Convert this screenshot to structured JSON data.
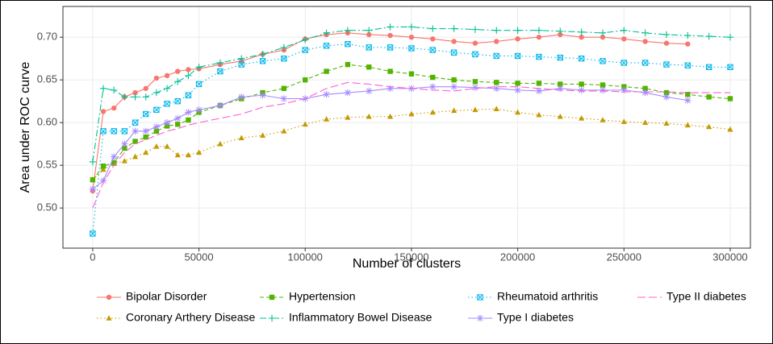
{
  "chart_data": {
    "type": "line",
    "x_label": "Number of clusters",
    "y_label": "Area under ROC curve",
    "x": [
      0,
      5000,
      10000,
      15000,
      20000,
      25000,
      30000,
      35000,
      40000,
      45000,
      50000,
      60000,
      70000,
      80000,
      90000,
      100000,
      110000,
      120000,
      130000,
      140000,
      150000,
      160000,
      170000,
      180000,
      190000,
      200000,
      210000,
      220000,
      230000,
      240000,
      250000,
      260000,
      270000,
      280000,
      290000,
      300000
    ],
    "xlim": [
      -14000,
      309500
    ],
    "ylim": [
      0.453,
      0.736
    ],
    "xticks": [
      0,
      50000,
      100000,
      150000,
      200000,
      250000,
      300000
    ],
    "yticks": [
      {
        "value": 0.5,
        "label": "0.50"
      },
      0.55,
      {
        "value": 0.6,
        "label": "0.60"
      },
      0.65,
      {
        "value": 0.7,
        "label": "0.70"
      }
    ],
    "grid": true,
    "legend_position": "bottom",
    "series": [
      {
        "name": "Bipolar Disorder",
        "color": "#F8766D",
        "marker": "circle",
        "linestyle": "solid",
        "values": [
          0.52,
          0.613,
          0.617,
          0.63,
          0.635,
          0.64,
          0.652,
          0.655,
          0.66,
          0.662,
          0.663,
          0.668,
          0.672,
          0.68,
          0.685,
          0.698,
          0.703,
          0.705,
          0.703,
          0.702,
          0.7,
          0.698,
          0.695,
          0.693,
          0.695,
          0.698,
          0.7,
          0.703,
          0.7,
          0.7,
          0.698,
          0.695,
          0.693,
          0.692,
          null,
          null
        ]
      },
      {
        "name": "Coronary Arthery Disease",
        "color": "#C49A00",
        "marker": "triangle",
        "linestyle": "dotted",
        "values": [
          0.533,
          0.545,
          0.552,
          0.555,
          0.56,
          0.565,
          0.572,
          0.572,
          0.562,
          0.562,
          0.565,
          0.575,
          0.582,
          0.585,
          0.59,
          0.598,
          0.604,
          0.606,
          0.607,
          0.607,
          0.61,
          0.612,
          0.614,
          0.615,
          0.616,
          0.612,
          0.609,
          0.607,
          0.605,
          0.603,
          0.601,
          0.6,
          0.599,
          0.597,
          0.595,
          0.592
        ]
      },
      {
        "name": "Hypertension",
        "color": "#53B400",
        "marker": "square",
        "linestyle": "dashed",
        "values": [
          0.533,
          0.549,
          0.553,
          0.57,
          0.578,
          0.583,
          0.59,
          0.596,
          0.598,
          0.603,
          0.612,
          0.62,
          0.628,
          0.635,
          0.64,
          0.65,
          0.66,
          0.668,
          0.665,
          0.66,
          0.657,
          0.653,
          0.65,
          0.648,
          0.647,
          0.646,
          0.646,
          0.645,
          0.645,
          0.644,
          0.642,
          0.64,
          0.635,
          0.633,
          0.63,
          0.628
        ]
      },
      {
        "name": "Inflammatory Bowel Disease",
        "color": "#00C094",
        "marker": "plus",
        "linestyle": "dashdot",
        "values": [
          0.554,
          0.64,
          0.638,
          0.63,
          0.63,
          0.63,
          0.635,
          0.64,
          0.648,
          0.655,
          0.665,
          0.67,
          0.675,
          0.68,
          0.688,
          0.697,
          0.705,
          0.708,
          0.708,
          0.712,
          0.712,
          0.71,
          0.71,
          0.709,
          0.708,
          0.708,
          0.708,
          0.707,
          0.706,
          0.705,
          0.708,
          0.705,
          0.703,
          0.702,
          0.701,
          0.7
        ]
      },
      {
        "name": "Rheumatoid arthritis",
        "color": "#00B6EB",
        "marker": "boxx",
        "linestyle": "dotted",
        "values": [
          0.47,
          0.59,
          0.59,
          0.59,
          0.6,
          0.61,
          0.615,
          0.622,
          0.625,
          0.632,
          0.645,
          0.66,
          0.668,
          0.672,
          0.675,
          0.685,
          0.69,
          0.692,
          0.688,
          0.688,
          0.687,
          0.685,
          0.682,
          0.68,
          0.678,
          0.678,
          0.677,
          0.676,
          0.675,
          0.672,
          0.67,
          0.67,
          0.668,
          0.667,
          0.665,
          0.665
        ]
      },
      {
        "name": "Type I diabetes",
        "color": "#A58AFF",
        "marker": "asterisk",
        "linestyle": "solid",
        "values": [
          0.522,
          0.532,
          0.56,
          0.575,
          0.59,
          0.59,
          0.595,
          0.6,
          0.605,
          0.612,
          0.615,
          0.62,
          0.63,
          0.632,
          0.628,
          0.628,
          0.633,
          0.635,
          0.637,
          0.64,
          0.64,
          0.642,
          0.642,
          0.641,
          0.64,
          0.638,
          0.637,
          0.64,
          0.638,
          0.638,
          0.638,
          0.635,
          0.63,
          0.626,
          null,
          null
        ]
      },
      {
        "name": "Type II diabetes",
        "color": "#FB61D7",
        "marker": "none",
        "linestyle": "longdash",
        "values": [
          0.5,
          0.53,
          0.55,
          0.565,
          0.575,
          0.58,
          0.585,
          0.59,
          0.593,
          0.597,
          0.6,
          0.605,
          0.61,
          0.618,
          0.622,
          0.628,
          0.64,
          0.647,
          0.645,
          0.642,
          0.64,
          0.638,
          0.637,
          0.64,
          0.642,
          0.642,
          0.64,
          0.638,
          0.637,
          0.637,
          0.636,
          0.636,
          0.636,
          0.635,
          0.635,
          0.635
        ]
      }
    ]
  }
}
